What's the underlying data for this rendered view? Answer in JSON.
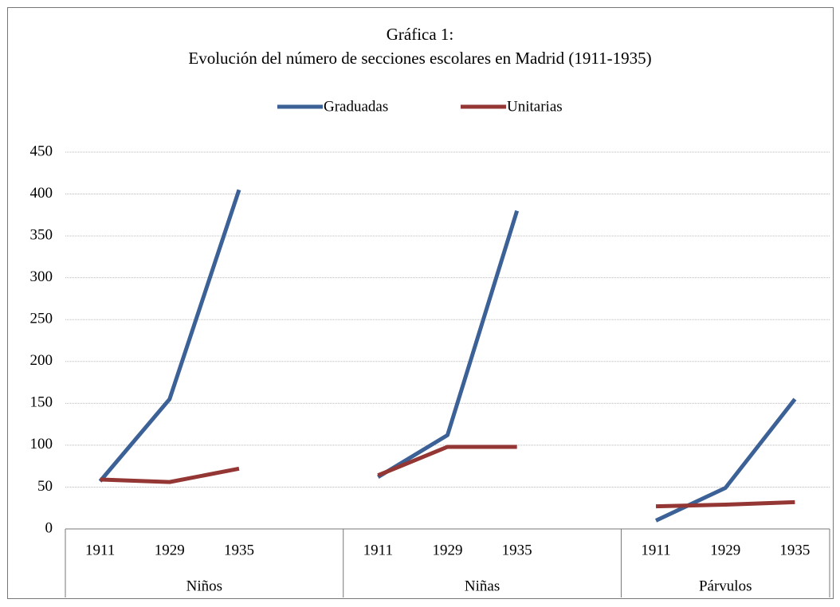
{
  "chart_data": {
    "type": "line",
    "title": "Gráfica 1:",
    "subtitle": "Evolución del número de secciones escolares en Madrid (1911-1935)",
    "categories": [
      "1911",
      "1929",
      "1935",
      null,
      "1911",
      "1929",
      "1935",
      null,
      "1911",
      "1929",
      "1935"
    ],
    "groups": [
      "Niños",
      "Niñas",
      "Párvulos"
    ],
    "series": [
      {
        "name": "Graduadas",
        "color": "#3b6196",
        "values": [
          57,
          155,
          405,
          null,
          62,
          112,
          380,
          null,
          10,
          49,
          155
        ]
      },
      {
        "name": "Unitarias",
        "color": "#943634",
        "values": [
          59,
          56,
          72,
          null,
          64,
          98,
          98,
          null,
          27,
          29,
          32
        ]
      }
    ],
    "ylim": [
      0,
      450
    ],
    "yticks": [
      0,
      50,
      100,
      150,
      200,
      250,
      300,
      350,
      400,
      450
    ],
    "grid": true,
    "legend": "top"
  }
}
